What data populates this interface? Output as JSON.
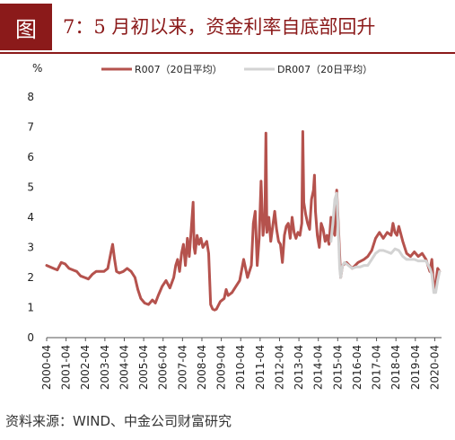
{
  "header": {
    "figure_label": "图",
    "title": "7：5 月初以来，资金利率自底部回升"
  },
  "source_note": "资料来源：WIND、中金公司财富研究",
  "chart_data": {
    "type": "line",
    "ylabel": "%",
    "ylim": [
      0,
      8
    ],
    "yticks": [
      "0",
      "1",
      "2",
      "3",
      "4",
      "5",
      "6",
      "7",
      "8"
    ],
    "xticks": [
      "2000-04",
      "2001-04",
      "2002-04",
      "2003-04",
      "2004-04",
      "2005-04",
      "2006-04",
      "2007-04",
      "2008-04",
      "2009-04",
      "2010-04",
      "2011-04",
      "2012-04",
      "2013-04",
      "2014-04",
      "2015-04",
      "2016-04",
      "2017-04",
      "2018-04",
      "2019-04",
      "2020-04"
    ],
    "xlim": [
      2000.25,
      2020.6
    ],
    "grid": false,
    "legend_position": "top",
    "series": [
      {
        "name": "R007（20日平均）",
        "color": "#b5524d",
        "x": [
          2000.25,
          2000.6,
          2000.8,
          2001.0,
          2001.2,
          2001.4,
          2001.6,
          2001.8,
          2002.0,
          2002.2,
          2002.4,
          2002.6,
          2002.8,
          2003.0,
          2003.2,
          2003.4,
          2003.55,
          2003.65,
          2003.75,
          2003.85,
          2004.0,
          2004.2,
          2004.4,
          2004.6,
          2004.8,
          2004.95,
          2005.1,
          2005.3,
          2005.5,
          2005.7,
          2005.85,
          2006.0,
          2006.2,
          2006.4,
          2006.6,
          2006.8,
          2006.9,
          2007.0,
          2007.1,
          2007.2,
          2007.3,
          2007.4,
          2007.5,
          2007.6,
          2007.7,
          2007.8,
          2007.85,
          2007.9,
          2008.0,
          2008.1,
          2008.2,
          2008.3,
          2008.4,
          2008.5,
          2008.6,
          2008.7,
          2008.8,
          2008.9,
          2009.0,
          2009.2,
          2009.4,
          2009.5,
          2009.6,
          2009.8,
          2010.0,
          2010.2,
          2010.4,
          2010.6,
          2010.8,
          2010.9,
          2011.0,
          2011.1,
          2011.2,
          2011.3,
          2011.4,
          2011.5,
          2011.55,
          2011.6,
          2011.7,
          2011.8,
          2011.9,
          2012.0,
          2012.1,
          2012.2,
          2012.3,
          2012.4,
          2012.5,
          2012.6,
          2012.7,
          2012.8,
          2012.9,
          2013.0,
          2013.1,
          2013.2,
          2013.3,
          2013.4,
          2013.45,
          2013.5,
          2013.6,
          2013.7,
          2013.8,
          2013.9,
          2014.0,
          2014.05,
          2014.1,
          2014.2,
          2014.3,
          2014.4,
          2014.5,
          2014.6,
          2014.7,
          2014.8,
          2014.9,
          2015.0,
          2015.1,
          2015.2,
          2015.3,
          2015.4,
          2015.5,
          2015.7,
          2016.0,
          2016.3,
          2016.6,
          2016.8,
          2017.0,
          2017.2,
          2017.4,
          2017.6,
          2017.8,
          2018.0,
          2018.1,
          2018.2,
          2018.3,
          2018.4,
          2018.6,
          2018.8,
          2019.0,
          2019.2,
          2019.4,
          2019.6,
          2019.8,
          2020.0,
          2020.1,
          2020.2,
          2020.3,
          2020.4,
          2020.5
        ],
        "y": [
          2.4,
          2.3,
          2.25,
          2.5,
          2.45,
          2.3,
          2.25,
          2.2,
          2.05,
          2.0,
          1.95,
          2.1,
          2.2,
          2.2,
          2.2,
          2.3,
          2.8,
          3.1,
          2.6,
          2.2,
          2.15,
          2.2,
          2.3,
          2.2,
          2.0,
          1.6,
          1.3,
          1.15,
          1.1,
          1.25,
          1.15,
          1.4,
          1.7,
          1.9,
          1.65,
          2.0,
          2.4,
          2.6,
          2.2,
          2.8,
          3.1,
          2.4,
          3.3,
          2.7,
          3.6,
          4.5,
          3.0,
          2.8,
          3.4,
          3.1,
          3.3,
          3.0,
          3.1,
          3.2,
          2.8,
          1.1,
          0.95,
          0.92,
          0.95,
          1.2,
          1.3,
          1.6,
          1.4,
          1.5,
          1.7,
          1.9,
          2.6,
          2.0,
          2.4,
          3.8,
          4.2,
          2.4,
          3.3,
          5.2,
          3.4,
          4.0,
          6.8,
          3.5,
          4.0,
          3.2,
          3.7,
          4.2,
          3.6,
          3.2,
          3.1,
          2.5,
          3.4,
          3.7,
          3.8,
          3.3,
          4.0,
          3.5,
          3.3,
          3.5,
          3.4,
          3.8,
          6.85,
          4.5,
          4.1,
          3.8,
          3.6,
          4.6,
          4.9,
          5.4,
          4.2,
          3.4,
          3.0,
          3.8,
          3.6,
          3.2,
          3.4,
          3.1,
          4.0,
          3.6,
          3.4,
          4.9,
          3.5,
          2.0,
          2.4,
          2.5,
          2.3,
          2.5,
          2.6,
          2.7,
          2.9,
          3.3,
          3.5,
          3.3,
          3.5,
          3.4,
          3.8,
          3.5,
          3.4,
          3.7,
          3.2,
          2.8,
          2.7,
          2.85,
          2.7,
          2.8,
          2.6,
          2.2,
          2.6,
          1.6,
          1.8,
          2.3,
          2.2
        ]
      },
      {
        "name": "DR007（20日平均）",
        "color": "#d3d3d3",
        "x": [
          2014.9,
          2015.0,
          2015.1,
          2015.2,
          2015.3,
          2015.35,
          2015.4,
          2015.5,
          2015.6,
          2015.8,
          2016.0,
          2016.2,
          2016.4,
          2016.6,
          2016.8,
          2017.0,
          2017.2,
          2017.4,
          2017.6,
          2017.8,
          2018.0,
          2018.2,
          2018.4,
          2018.6,
          2018.8,
          2019.0,
          2019.2,
          2019.4,
          2019.6,
          2019.8,
          2020.0,
          2020.1,
          2020.2,
          2020.3,
          2020.4,
          2020.5
        ],
        "y": [
          3.2,
          3.8,
          4.6,
          4.8,
          3.2,
          2.3,
          2.0,
          2.4,
          2.5,
          2.4,
          2.3,
          2.35,
          2.35,
          2.4,
          2.4,
          2.6,
          2.8,
          2.9,
          2.9,
          2.85,
          2.8,
          2.95,
          2.9,
          2.7,
          2.6,
          2.6,
          2.6,
          2.55,
          2.55,
          2.55,
          2.3,
          2.1,
          1.5,
          1.5,
          1.9,
          2.2
        ]
      }
    ]
  }
}
